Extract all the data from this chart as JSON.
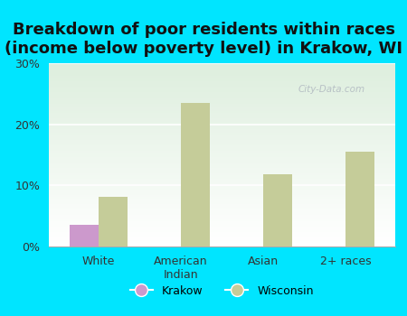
{
  "title": "Breakdown of poor residents within races\n(income below poverty level) in Krakow, WI",
  "categories": [
    "White",
    "American\nIndian",
    "Asian",
    "2+ races"
  ],
  "krakow_values": [
    3.5,
    0,
    0,
    0
  ],
  "wisconsin_values": [
    8.2,
    23.5,
    11.8,
    15.5
  ],
  "krakow_color": "#cc99cc",
  "wisconsin_color": "#c5cc99",
  "background_color": "#00e5ff",
  "yticks": [
    0,
    10,
    20,
    30
  ],
  "ytick_labels": [
    "0%",
    "10%",
    "20%",
    "30%"
  ],
  "ylim": [
    0,
    30
  ],
  "bar_width": 0.35,
  "title_fontsize": 13,
  "legend_labels": [
    "Krakow",
    "Wisconsin"
  ]
}
